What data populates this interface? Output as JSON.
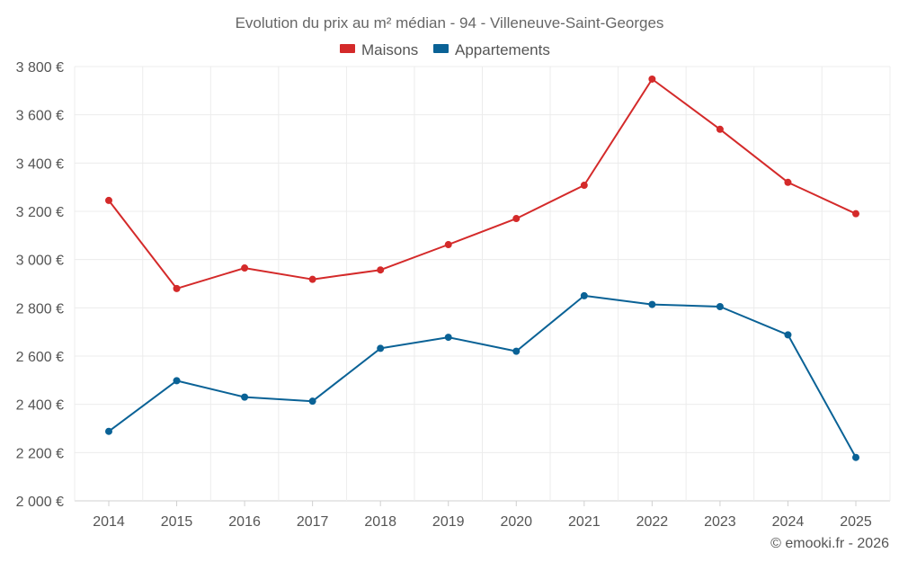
{
  "chart_data": {
    "type": "line",
    "title": "Evolution du prix au m² médian - 94 - Villeneuve-Saint-Georges",
    "x": [
      "2014",
      "2015",
      "2016",
      "2017",
      "2018",
      "2019",
      "2020",
      "2021",
      "2022",
      "2023",
      "2024",
      "2025"
    ],
    "series": [
      {
        "name": "Maisons",
        "color": "#d42a2a",
        "values": [
          3245,
          2880,
          2965,
          2918,
          2957,
          3062,
          3170,
          3308,
          3748,
          3540,
          3320,
          3190
        ]
      },
      {
        "name": "Appartements",
        "color": "#0a6296",
        "values": [
          2288,
          2498,
          2430,
          2413,
          2632,
          2678,
          2620,
          2850,
          2814,
          2805,
          2688,
          2180
        ]
      }
    ],
    "ylim": [
      2000,
      3800
    ],
    "y_ticks": [
      {
        "value": 2000,
        "label": "2 000 €"
      },
      {
        "value": 2200,
        "label": "2 200 €"
      },
      {
        "value": 2400,
        "label": "2 400 €"
      },
      {
        "value": 2600,
        "label": "2 600 €"
      },
      {
        "value": 2800,
        "label": "2 800 €"
      },
      {
        "value": 3000,
        "label": "3 000 €"
      },
      {
        "value": 3200,
        "label": "3 200 €"
      },
      {
        "value": 3400,
        "label": "3 400 €"
      },
      {
        "value": 3600,
        "label": "3 600 €"
      },
      {
        "value": 3800,
        "label": "3 800 €"
      }
    ],
    "xlabel": "",
    "ylabel": "",
    "grid": true,
    "legend_position": "top-center"
  },
  "credit": "© emooki.fr - 2026"
}
